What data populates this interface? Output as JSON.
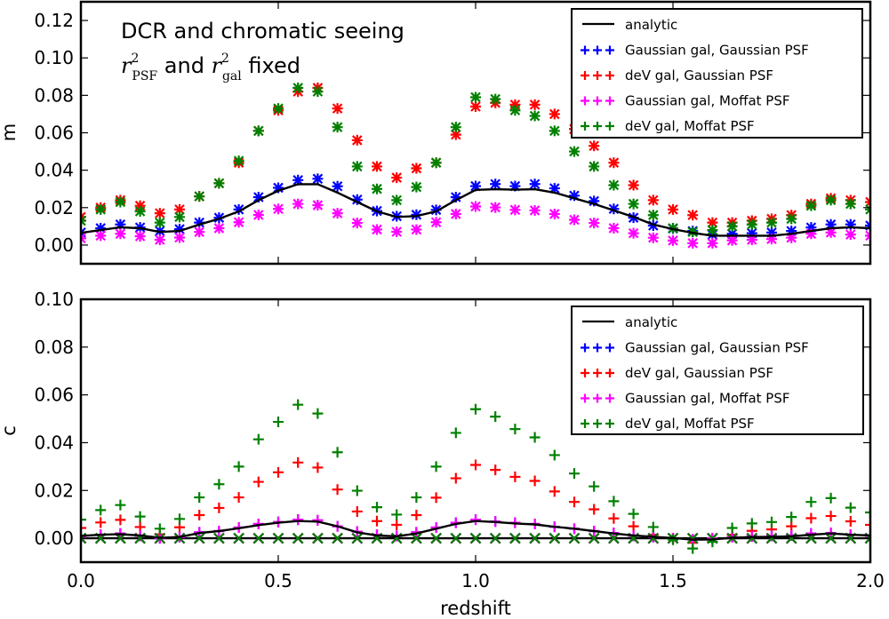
{
  "chart_data": [
    {
      "type": "scatter",
      "panel": "top",
      "ylabel": "m",
      "xlabel": "",
      "xlim": [
        0.0,
        2.0
      ],
      "ylim": [
        -0.01,
        0.13
      ],
      "yticks": [
        "0.00",
        "0.02",
        "0.04",
        "0.06",
        "0.08",
        "0.10",
        "0.12"
      ],
      "ytick_values": [
        0.0,
        0.02,
        0.04,
        0.06,
        0.08,
        0.1,
        0.12
      ],
      "xticks": [
        "0.0",
        "0.5",
        "1.0",
        "1.5",
        "2.0"
      ],
      "xtick_values": [
        0.0,
        0.5,
        1.0,
        1.5,
        2.0
      ],
      "annotation": {
        "line1": "DCR and chromatic seeing",
        "line2_sym1": "r",
        "line2_sup1": "2",
        "line2_sub1": "PSF",
        "line2_mid": " and ",
        "line2_sym2": "r",
        "line2_sup2": "2",
        "line2_sub2": "gal",
        "line2_end": " fixed"
      },
      "legend_position": "top-right",
      "x": [
        0.0,
        0.05,
        0.1,
        0.15,
        0.2,
        0.25,
        0.3,
        0.35,
        0.4,
        0.45,
        0.5,
        0.55,
        0.6,
        0.65,
        0.7,
        0.75,
        0.8,
        0.85,
        0.9,
        0.95,
        1.0,
        1.05,
        1.1,
        1.15,
        1.2,
        1.25,
        1.3,
        1.35,
        1.4,
        1.45,
        1.5,
        1.55,
        1.6,
        1.65,
        1.7,
        1.75,
        1.8,
        1.85,
        1.9,
        1.95,
        2.0
      ],
      "analytic": {
        "name": "analytic",
        "color": "#000000",
        "values": [
          0.0065,
          0.008,
          0.0095,
          0.009,
          0.007,
          0.0075,
          0.011,
          0.014,
          0.018,
          0.024,
          0.029,
          0.0325,
          0.0325,
          0.028,
          0.023,
          0.018,
          0.015,
          0.0155,
          0.018,
          0.024,
          0.0295,
          0.0298,
          0.0296,
          0.0298,
          0.028,
          0.025,
          0.022,
          0.0185,
          0.015,
          0.011,
          0.0085,
          0.0065,
          0.005,
          0.005,
          0.005,
          0.005,
          0.006,
          0.0075,
          0.009,
          0.0095,
          0.009
        ]
      },
      "series": [
        {
          "name": "Gaussian gal, Gaussian PSF",
          "color": "#0000ff",
          "values": [
            0.0067,
            0.009,
            0.011,
            0.0094,
            0.0075,
            0.0085,
            0.012,
            0.0146,
            0.019,
            0.0256,
            0.0306,
            0.0347,
            0.0354,
            0.0314,
            0.0243,
            0.0182,
            0.0154,
            0.0162,
            0.0188,
            0.0256,
            0.0315,
            0.0326,
            0.0315,
            0.0326,
            0.0303,
            0.0264,
            0.0235,
            0.0193,
            0.0146,
            0.0104,
            0.0088,
            0.0075,
            0.0056,
            0.006,
            0.0063,
            0.0067,
            0.0075,
            0.0094,
            0.011,
            0.011,
            0.0104
          ]
        },
        {
          "name": "deV gal, Gaussian PSF",
          "color": "#ff0000",
          "values": [
            0.015,
            0.02,
            0.024,
            0.021,
            0.017,
            0.019,
            0.026,
            0.033,
            0.044,
            0.061,
            0.072,
            0.082,
            0.084,
            0.073,
            0.056,
            0.042,
            0.036,
            0.041,
            0.044,
            0.059,
            0.074,
            0.076,
            0.075,
            0.075,
            0.07,
            0.062,
            0.053,
            0.044,
            0.032,
            0.024,
            0.019,
            0.016,
            0.012,
            0.012,
            0.013,
            0.014,
            0.016,
            0.022,
            0.025,
            0.024,
            0.023
          ]
        },
        {
          "name": "Gaussian gal, Moffat PSF",
          "color": "#ff00ff",
          "values": [
            0.0036,
            0.005,
            0.006,
            0.0047,
            0.0028,
            0.004,
            0.007,
            0.009,
            0.0122,
            0.0161,
            0.0193,
            0.022,
            0.0213,
            0.017,
            0.0118,
            0.0083,
            0.0071,
            0.0083,
            0.0122,
            0.0166,
            0.0206,
            0.0201,
            0.0188,
            0.0185,
            0.0166,
            0.0135,
            0.0118,
            0.009,
            0.0063,
            0.0039,
            0.0024,
            0.001,
            0.001,
            0.0025,
            0.0028,
            0.0032,
            0.0039,
            0.006,
            0.0067,
            0.0056,
            0.005
          ]
        },
        {
          "name": "deV gal, Moffat PSF",
          "color": "#008000",
          "values": [
            0.013,
            0.019,
            0.023,
            0.018,
            0.012,
            0.015,
            0.026,
            0.033,
            0.045,
            0.061,
            0.073,
            0.084,
            0.082,
            0.063,
            0.042,
            0.03,
            0.024,
            0.031,
            0.044,
            0.063,
            0.079,
            0.078,
            0.072,
            0.069,
            0.061,
            0.05,
            0.042,
            0.032,
            0.022,
            0.016,
            0.009,
            0.007,
            0.008,
            0.01,
            0.011,
            0.012,
            0.014,
            0.021,
            0.024,
            0.022,
            0.019
          ]
        }
      ]
    },
    {
      "type": "scatter",
      "panel": "bottom",
      "ylabel": "c",
      "xlabel": "redshift",
      "xlim": [
        0.0,
        2.0
      ],
      "ylim": [
        -0.01,
        0.1
      ],
      "yticks": [
        "0.00",
        "0.02",
        "0.04",
        "0.06",
        "0.08",
        "0.10"
      ],
      "ytick_values": [
        0.0,
        0.02,
        0.04,
        0.06,
        0.08,
        0.1
      ],
      "xticks": [
        "0.0",
        "0.5",
        "1.0",
        "1.5",
        "2.0"
      ],
      "xtick_values": [
        0.0,
        0.5,
        1.0,
        1.5,
        2.0
      ],
      "legend_position": "top-right",
      "x": [
        0.0,
        0.05,
        0.1,
        0.15,
        0.2,
        0.25,
        0.3,
        0.35,
        0.4,
        0.45,
        0.5,
        0.55,
        0.6,
        0.65,
        0.7,
        0.75,
        0.8,
        0.85,
        0.9,
        0.95,
        1.0,
        1.05,
        1.1,
        1.15,
        1.2,
        1.25,
        1.3,
        1.35,
        1.4,
        1.45,
        1.5,
        1.55,
        1.6,
        1.65,
        1.7,
        1.75,
        1.8,
        1.85,
        1.9,
        1.95,
        2.0
      ],
      "analytic": {
        "name": "analytic",
        "color": "#000000",
        "values_c1": [
          0.001,
          0.0015,
          0.0017,
          0.0012,
          0.0002,
          0.0005,
          0.0022,
          0.003,
          0.0042,
          0.0055,
          0.0065,
          0.0072,
          0.007,
          0.005,
          0.0025,
          0.0012,
          0.0008,
          0.002,
          0.004,
          0.006,
          0.0072,
          0.0068,
          0.0062,
          0.0058,
          0.0048,
          0.004,
          0.003,
          0.002,
          0.0012,
          0.0006,
          0.0001,
          -0.0006,
          -0.0005,
          0.0002,
          0.0005,
          0.0006,
          0.0008,
          0.0015,
          0.002,
          0.0015,
          0.0012
        ],
        "values_c2": [
          0,
          0,
          0,
          0,
          0,
          0,
          0,
          0,
          0,
          0,
          0,
          0,
          0,
          0,
          0,
          0,
          0,
          0,
          0,
          0,
          0,
          0,
          0,
          0,
          0,
          0,
          0,
          0,
          0,
          0,
          0,
          0,
          0,
          0,
          0,
          0,
          0,
          0,
          0,
          0,
          0
        ]
      },
      "series": [
        {
          "name": "Gaussian gal, Gaussian PSF",
          "color": "#0000ff",
          "c1": [
            0.0005,
            0.0015,
            0.002,
            0.001,
            0.0,
            0.0005,
            0.0025,
            0.003,
            0.0045,
            0.006,
            0.0068,
            0.0078,
            0.0075,
            0.005,
            0.0028,
            0.0015,
            0.001,
            0.0025,
            0.0045,
            0.0065,
            0.0078,
            0.007,
            0.0065,
            0.006,
            0.0048,
            0.004,
            0.003,
            0.0022,
            0.001,
            0.0005,
            0.0,
            -0.0005,
            0.0,
            0.0005,
            0.0008,
            0.001,
            0.0012,
            0.002,
            0.0022,
            0.0015,
            0.001
          ],
          "c2": [
            0,
            0,
            0,
            0,
            0,
            0,
            0,
            0,
            0,
            0,
            0,
            0,
            0,
            0,
            0,
            0,
            0,
            0,
            0,
            0,
            0,
            0,
            0,
            0,
            0,
            0,
            0,
            0,
            0,
            0,
            0,
            0,
            0,
            0,
            0,
            0,
            0,
            0,
            0,
            0,
            0
          ]
        },
        {
          "name": "deV gal, Gaussian PSF",
          "color": "#ff0000",
          "c1": [
            0.0043,
            0.0066,
            0.0077,
            0.0047,
            0.0016,
            0.0046,
            0.0097,
            0.0127,
            0.0171,
            0.0236,
            0.0276,
            0.0317,
            0.0296,
            0.0204,
            0.0112,
            0.0072,
            0.0056,
            0.0097,
            0.017,
            0.0251,
            0.0307,
            0.0286,
            0.0257,
            0.024,
            0.0196,
            0.0152,
            0.0121,
            0.0083,
            0.005,
            0.0015,
            0.0,
            -0.0019,
            0.0,
            0.0015,
            0.0031,
            0.0037,
            0.005,
            0.0084,
            0.0093,
            0.0071,
            0.0056
          ],
          "c2": [
            0,
            0,
            0,
            0,
            0,
            0,
            0,
            0,
            0,
            0,
            0,
            0,
            0,
            0,
            0,
            0,
            0,
            0,
            0,
            0,
            0,
            0,
            0,
            0,
            0,
            0,
            0,
            0,
            0,
            0,
            0,
            0,
            0,
            0,
            0,
            0,
            0,
            0,
            0,
            0,
            0
          ]
        },
        {
          "name": "Gaussian gal, Moffat PSF",
          "color": "#ff00ff",
          "c1": [
            0.0005,
            0.0015,
            0.002,
            0.001,
            0.0,
            0.0005,
            0.0025,
            0.003,
            0.0045,
            0.006,
            0.0068,
            0.0078,
            0.0075,
            0.005,
            0.0028,
            0.0015,
            0.001,
            0.0025,
            0.0045,
            0.0065,
            0.0078,
            0.007,
            0.0065,
            0.006,
            0.0048,
            0.004,
            0.003,
            0.0022,
            0.001,
            0.0005,
            0.0,
            -0.0005,
            0.0,
            0.0005,
            0.0008,
            0.001,
            0.0012,
            0.002,
            0.0022,
            0.0015,
            0.001
          ],
          "c2": [
            0,
            0,
            0,
            0,
            0,
            0,
            0,
            0,
            0,
            0,
            0,
            0,
            0,
            0,
            0,
            0,
            0,
            0,
            0,
            0,
            0,
            0,
            0,
            0,
            0,
            0,
            0,
            0,
            0,
            0,
            0,
            0,
            0,
            0,
            0,
            0,
            0,
            0,
            0,
            0,
            0
          ]
        },
        {
          "name": "deV gal, Moffat PSF",
          "color": "#008000",
          "c1": [
            0.0078,
            0.0118,
            0.0139,
            0.0091,
            0.004,
            0.0081,
            0.0171,
            0.0226,
            0.03,
            0.0414,
            0.0487,
            0.0559,
            0.0522,
            0.036,
            0.0199,
            0.013,
            0.0099,
            0.0171,
            0.03,
            0.0441,
            0.054,
            0.0509,
            0.0457,
            0.0422,
            0.0348,
            0.0271,
            0.0217,
            0.0155,
            0.0102,
            0.0047,
            -0.0006,
            -0.0043,
            -0.0015,
            0.0043,
            0.0062,
            0.0068,
            0.0089,
            0.0152,
            0.0168,
            0.0128,
            0.0108
          ],
          "c2": [
            0,
            0,
            0,
            0,
            0,
            0,
            0,
            0,
            0,
            0,
            0,
            0,
            0,
            0,
            0,
            0,
            0,
            0,
            0,
            0,
            0,
            0,
            0,
            0,
            0,
            0,
            0,
            0,
            0,
            0,
            0,
            0,
            0,
            0,
            0,
            0,
            0,
            0,
            0,
            0,
            0
          ]
        }
      ]
    }
  ]
}
